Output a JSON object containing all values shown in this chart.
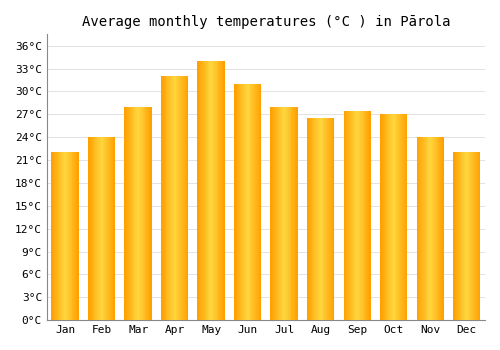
{
  "title": "Average monthly temperatures (°C ) in Pārola",
  "months": [
    "Jan",
    "Feb",
    "Mar",
    "Apr",
    "May",
    "Jun",
    "Jul",
    "Aug",
    "Sep",
    "Oct",
    "Nov",
    "Dec"
  ],
  "values": [
    22,
    24,
    28,
    32,
    34,
    31,
    28,
    26.5,
    27.5,
    27,
    24,
    22
  ],
  "bar_color_center": "#FFD740",
  "bar_color_edge": "#FFA000",
  "background_color": "#FFFFFF",
  "grid_color": "#DDDDDD",
  "yticks": [
    0,
    3,
    6,
    9,
    12,
    15,
    18,
    21,
    24,
    27,
    30,
    33,
    36
  ],
  "ylim": [
    0,
    37.5
  ],
  "title_fontsize": 10,
  "tick_fontsize": 8,
  "font_family": "monospace"
}
